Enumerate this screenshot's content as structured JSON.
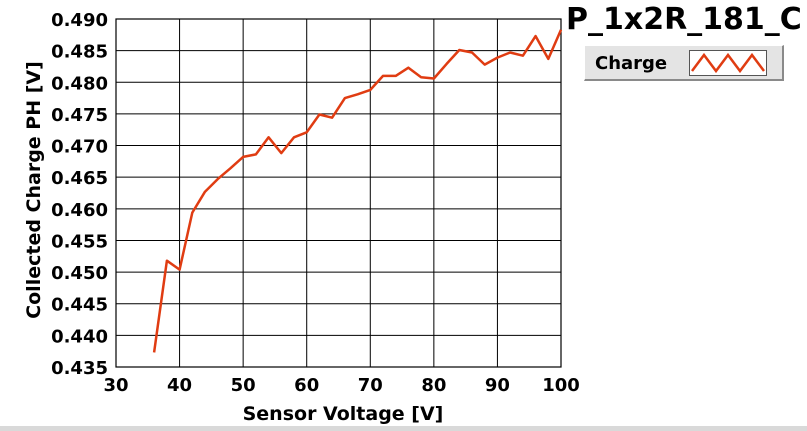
{
  "colors": {
    "series": "#e03c12",
    "grid": "#000000",
    "legend_bg": "#e4e4e4"
  },
  "chart_data": {
    "type": "line",
    "title": "P_1x2R_181_C",
    "xlabel": "Sensor Voltage [V]",
    "ylabel": "Collected Charge PH [V]",
    "xlim": [
      30,
      100
    ],
    "ylim": [
      0.435,
      0.49
    ],
    "xticks": [
      30,
      40,
      50,
      60,
      70,
      80,
      90,
      100
    ],
    "yticks": [
      0.435,
      0.44,
      0.445,
      0.45,
      0.455,
      0.46,
      0.465,
      0.47,
      0.475,
      0.48,
      0.485,
      0.49
    ],
    "ytick_labels": [
      "0.435",
      "0.440",
      "0.445",
      "0.450",
      "0.455",
      "0.460",
      "0.465",
      "0.470",
      "0.475",
      "0.480",
      "0.485",
      "0.490"
    ],
    "grid": true,
    "legend_position": "top-right",
    "series": [
      {
        "name": "Charge",
        "x": [
          36,
          38,
          40,
          42,
          44,
          46,
          48,
          50,
          52,
          54,
          56,
          58,
          60,
          62,
          64,
          66,
          68,
          70,
          72,
          74,
          76,
          78,
          80,
          82,
          84,
          86,
          88,
          90,
          92,
          94,
          96,
          98,
          100
        ],
        "y": [
          0.4373,
          0.4518,
          0.4504,
          0.4594,
          0.4627,
          0.4647,
          0.4664,
          0.4682,
          0.4686,
          0.4713,
          0.4688,
          0.4713,
          0.4721,
          0.4749,
          0.4744,
          0.4775,
          0.4781,
          0.4788,
          0.481,
          0.481,
          0.4823,
          0.4808,
          0.4806,
          0.4829,
          0.4851,
          0.4847,
          0.4828,
          0.4839,
          0.4847,
          0.4842,
          0.4873,
          0.4837,
          0.4883
        ]
      }
    ]
  }
}
